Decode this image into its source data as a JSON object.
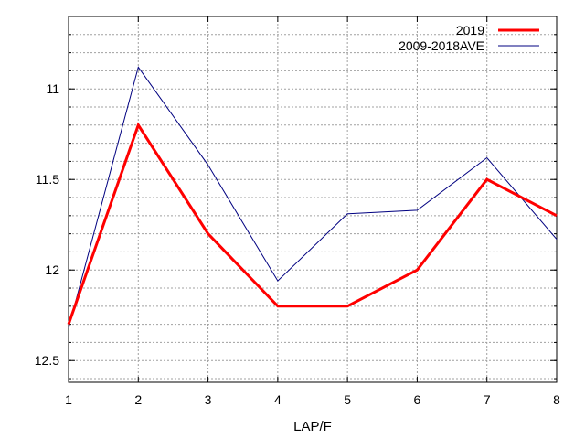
{
  "chart_data": {
    "type": "line",
    "title": "",
    "xlabel": "LAP/F",
    "ylabel": "",
    "x": [
      1,
      2,
      3,
      4,
      5,
      6,
      7,
      8
    ],
    "x_ticks": [
      "1",
      "2",
      "3",
      "4",
      "5",
      "6",
      "7",
      "8"
    ],
    "xlim": [
      1,
      8
    ],
    "ylim": [
      10.6,
      12.62
    ],
    "y_inverted": true,
    "y_ticks": [
      11,
      11.5,
      12,
      12.5
    ],
    "y_tick_labels": [
      "11",
      "11.5",
      "12",
      "12.5"
    ],
    "grid": true,
    "legend_position": "top-right",
    "series": [
      {
        "name": "2019",
        "values": [
          12.3,
          11.2,
          11.8,
          12.2,
          12.2,
          12.0,
          11.5,
          11.7
        ],
        "color": "#ff0000",
        "width": 3
      },
      {
        "name": "2009-2018AVE",
        "values": [
          12.32,
          10.88,
          11.42,
          12.06,
          11.69,
          11.67,
          11.38,
          11.83
        ],
        "color": "#000080",
        "width": 1
      }
    ]
  }
}
